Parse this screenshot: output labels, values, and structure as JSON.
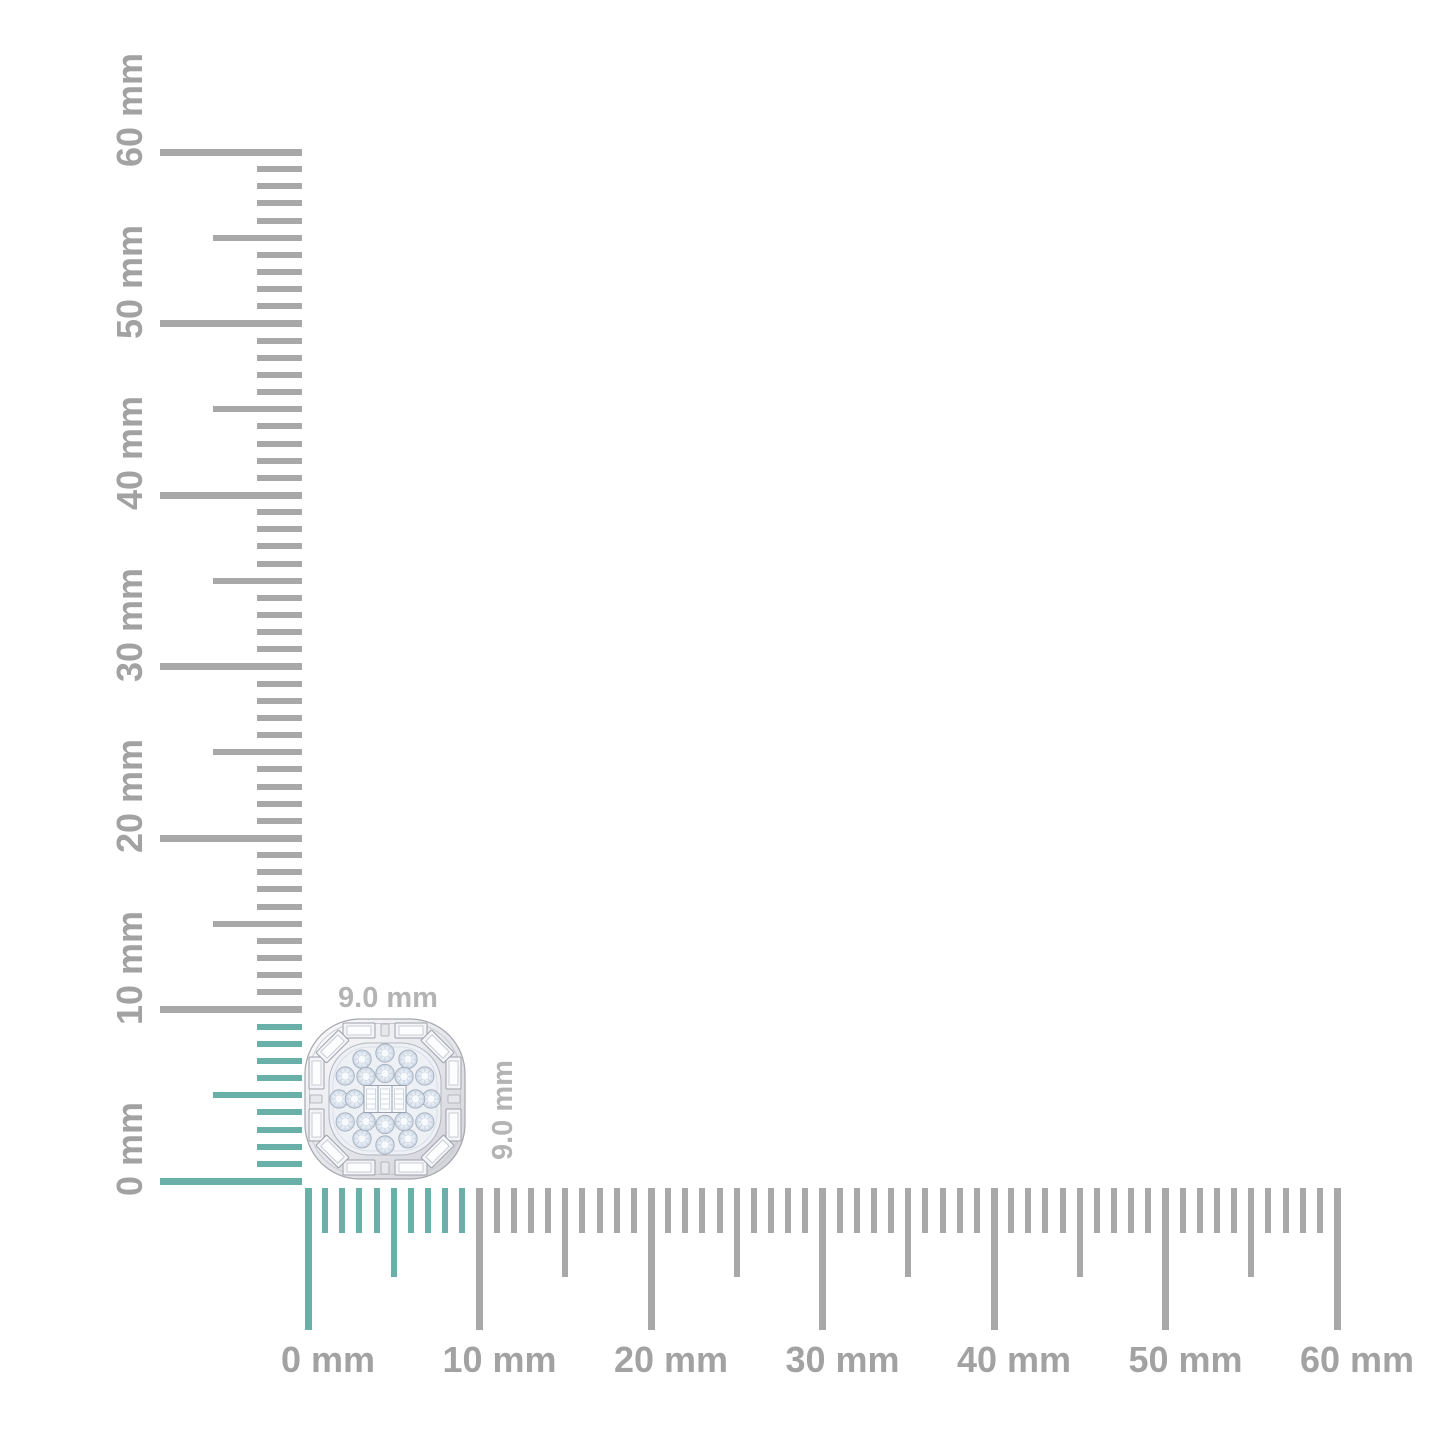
{
  "measurement": {
    "width_label": "9.0 mm",
    "height_label": "9.0 mm"
  },
  "rulers": {
    "unit": "mm",
    "min_mm": 0,
    "max_mm": 60,
    "minor_step_mm": 1,
    "mid_step_mm": 5,
    "major_step_mm": 10,
    "highlight_from_mm": 0,
    "highlight_to_mm": 9,
    "horizontal_labels": [
      "0 mm",
      "10 mm",
      "20 mm",
      "30 mm",
      "40 mm",
      "50 mm",
      "60 mm"
    ],
    "vertical_labels": [
      "0 mm",
      "10 mm",
      "20 mm",
      "30 mm",
      "40 mm",
      "50 mm",
      "60 mm"
    ]
  },
  "colors": {
    "background": "#ffffff",
    "tick_gray": "#a8a8a8",
    "highlight_teal": "#69b0a9",
    "ruler_label_gray": "#a2a2a2",
    "dimension_label_gray": "#b4b4b4"
  }
}
